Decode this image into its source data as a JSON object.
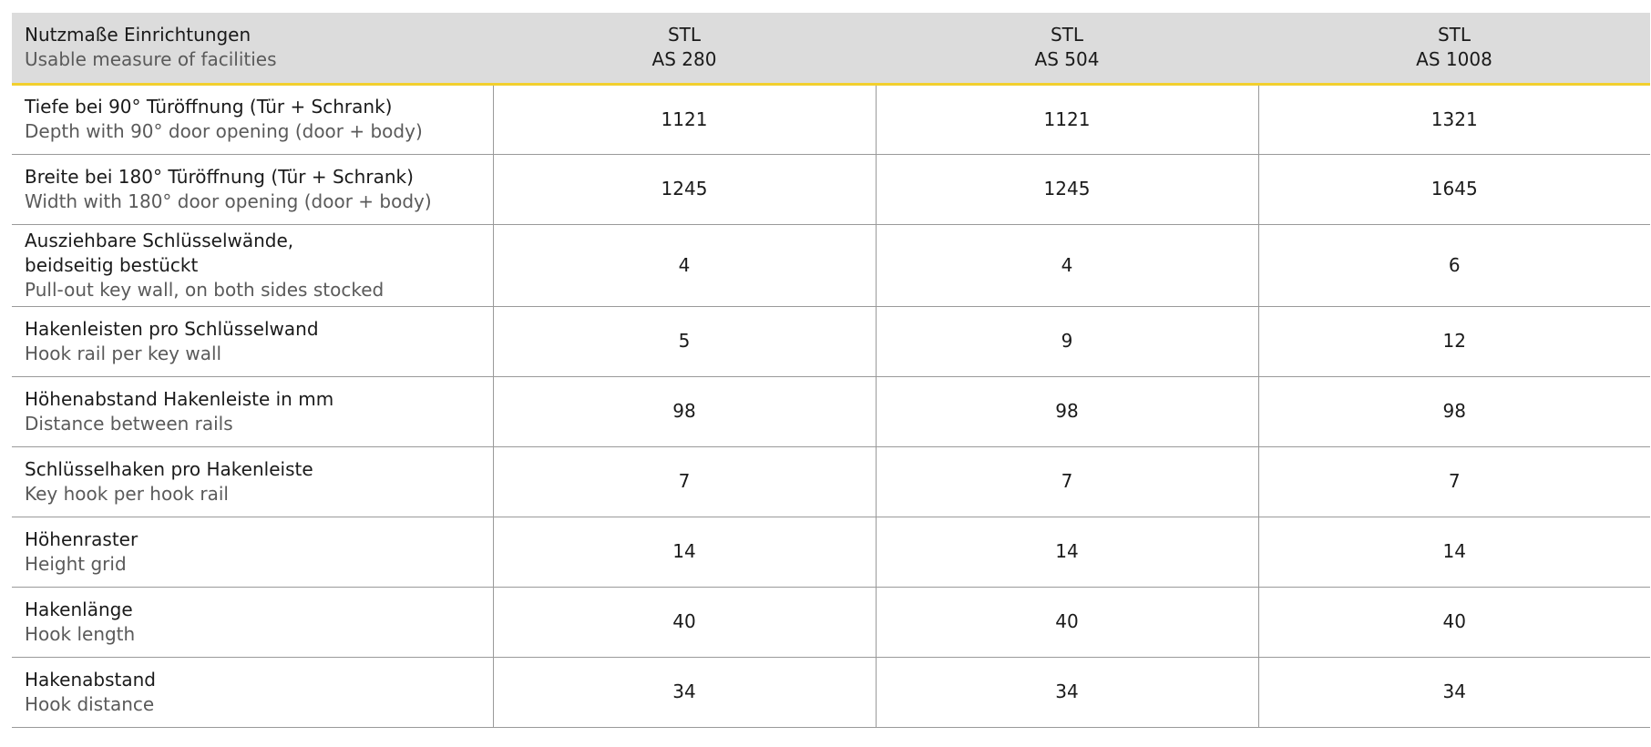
{
  "table": {
    "header": {
      "label_de": "Nutzmaße Einrichtungen",
      "label_en": "Usable measure of facilities",
      "models": [
        {
          "line1": "STL",
          "line2": "AS 280"
        },
        {
          "line1": "STL",
          "line2": "AS 504"
        },
        {
          "line1": "STL",
          "line2": "AS 1008"
        }
      ]
    },
    "rows": [
      {
        "de": [
          "Tiefe bei 90° Türöffnung (Tür + Schrank)"
        ],
        "en": "Depth with 90° door opening (door + body)",
        "values": [
          "1121",
          "1121",
          "1321"
        ]
      },
      {
        "de": [
          "Breite bei 180° Türöffnung (Tür + Schrank)"
        ],
        "en": "Width with 180° door opening (door + body)",
        "values": [
          "1245",
          "1245",
          "1645"
        ]
      },
      {
        "de": [
          "Ausziehbare Schlüsselwände,",
          "beidseitig bestückt"
        ],
        "en": "Pull-out key wall, on both sides stocked",
        "values": [
          "4",
          "4",
          "6"
        ]
      },
      {
        "de": [
          "Hakenleisten pro Schlüsselwand"
        ],
        "en": "Hook rail per key wall",
        "values": [
          "5",
          "9",
          "12"
        ]
      },
      {
        "de": [
          "Höhenabstand Hakenleiste in mm"
        ],
        "en": "Distance between rails",
        "values": [
          "98",
          "98",
          "98"
        ]
      },
      {
        "de": [
          "Schlüsselhaken pro Hakenleiste"
        ],
        "en": "Key hook per hook rail",
        "values": [
          "7",
          "7",
          "7"
        ]
      },
      {
        "de": [
          "Höhenraster"
        ],
        "en": "Height grid",
        "values": [
          "14",
          "14",
          "14"
        ]
      },
      {
        "de": [
          "Hakenlänge"
        ],
        "en": "Hook length",
        "values": [
          "40",
          "40",
          "40"
        ]
      },
      {
        "de": [
          "Hakenabstand"
        ],
        "en": "Hook distance",
        "values": [
          "34",
          "34",
          "34"
        ]
      }
    ]
  },
  "colors": {
    "header_bg": "#dcdcdc",
    "header_rule": "#f2cf2e",
    "grid": "#9a9a9a",
    "secondary_text": "#5a5a5a"
  }
}
